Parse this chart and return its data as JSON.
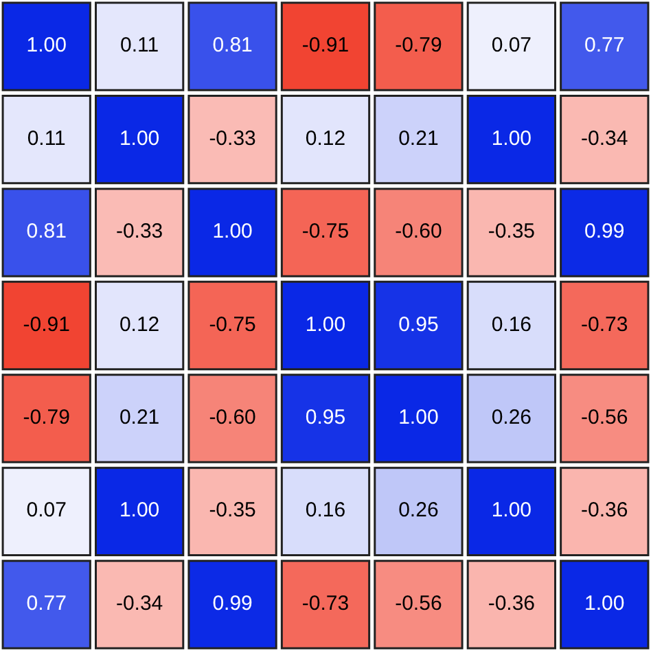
{
  "chart_data": {
    "type": "heatmap",
    "categories": [
      null,
      null,
      null,
      null,
      null,
      null,
      null
    ],
    "y_categories": [
      null,
      null,
      null,
      null,
      null,
      null,
      null
    ],
    "cells": [
      [
        1.0,
        0.11,
        0.81,
        -0.91,
        -0.79,
        0.07,
        0.77
      ],
      [
        0.11,
        1.0,
        -0.33,
        0.12,
        0.21,
        1.0,
        -0.34
      ],
      [
        0.81,
        -0.33,
        1.0,
        -0.75,
        -0.6,
        -0.35,
        0.99
      ],
      [
        -0.91,
        0.12,
        -0.75,
        1.0,
        0.95,
        0.16,
        -0.73
      ],
      [
        -0.79,
        0.21,
        -0.6,
        0.95,
        1.0,
        0.26,
        -0.56
      ],
      [
        0.07,
        1.0,
        -0.35,
        0.16,
        0.26,
        1.0,
        -0.36
      ],
      [
        0.77,
        -0.34,
        0.99,
        -0.73,
        -0.56,
        -0.36,
        1.0
      ]
    ],
    "cell_labels": [
      [
        "1.00",
        "0.11",
        "0.81",
        "-0.91",
        "-0.79",
        "0.07",
        "0.77"
      ],
      [
        "0.11",
        "1.00",
        "-0.33",
        "0.12",
        "0.21",
        "1.00",
        "-0.34"
      ],
      [
        "0.81",
        "-0.33",
        "1.00",
        "-0.75",
        "-0.60",
        "-0.35",
        "0.99"
      ],
      [
        "-0.91",
        "0.12",
        "-0.75",
        "1.00",
        "0.95",
        "0.16",
        "-0.73"
      ],
      [
        "-0.79",
        "0.21",
        "-0.60",
        "0.95",
        "1.00",
        "0.26",
        "-0.56"
      ],
      [
        "0.07",
        "1.00",
        "-0.35",
        "0.16",
        "0.26",
        "1.00",
        "-0.36"
      ],
      [
        "0.77",
        "-0.34",
        "0.99",
        "-0.73",
        "-0.56",
        "-0.36",
        "1.00"
      ]
    ]
  }
}
